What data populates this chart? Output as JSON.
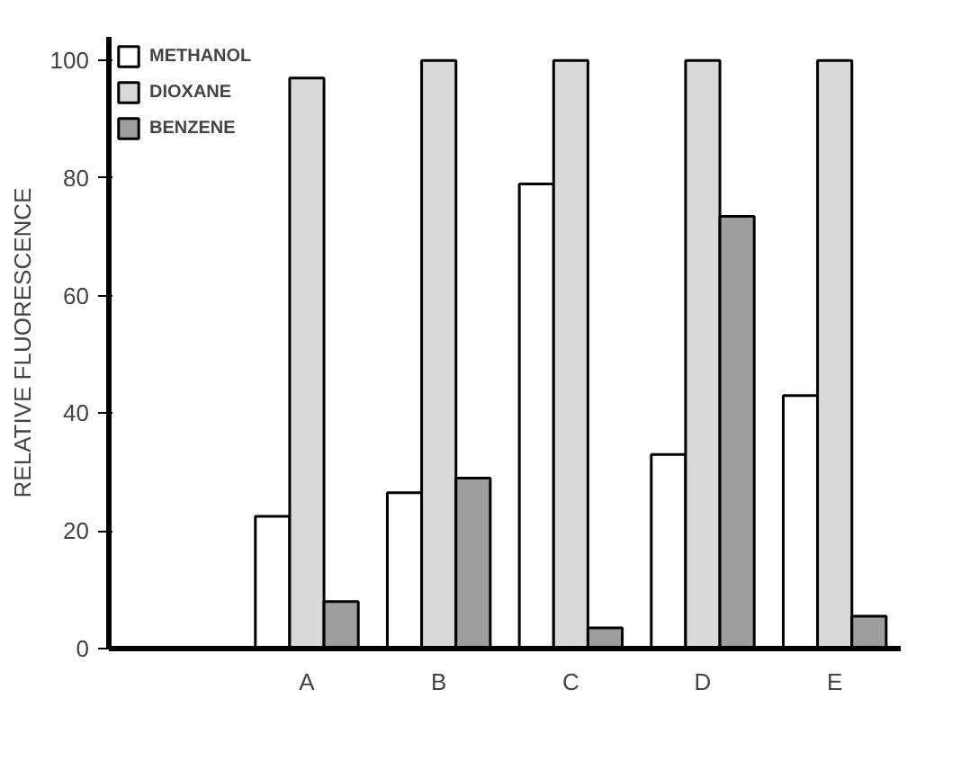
{
  "chart_data": {
    "type": "bar",
    "ylabel": "RELATIVE FLUORESCENCE",
    "categories": [
      "A",
      "B",
      "C",
      "D",
      "E"
    ],
    "series": [
      {
        "name": "METHANOL",
        "color": "#ffffff",
        "values": [
          22.5,
          26.5,
          79,
          33,
          43
        ]
      },
      {
        "name": "DIOXANE",
        "color": "#d9d9d9",
        "values": [
          97,
          100,
          100,
          100,
          100
        ]
      },
      {
        "name": "BENZENE",
        "color": "#9e9e9e",
        "values": [
          8,
          29,
          3.5,
          73.5,
          5.5
        ]
      }
    ],
    "ylim": [
      0,
      104
    ],
    "yticks": [
      0,
      20,
      40,
      60,
      80,
      100
    ],
    "grid": false,
    "legend": "top"
  }
}
